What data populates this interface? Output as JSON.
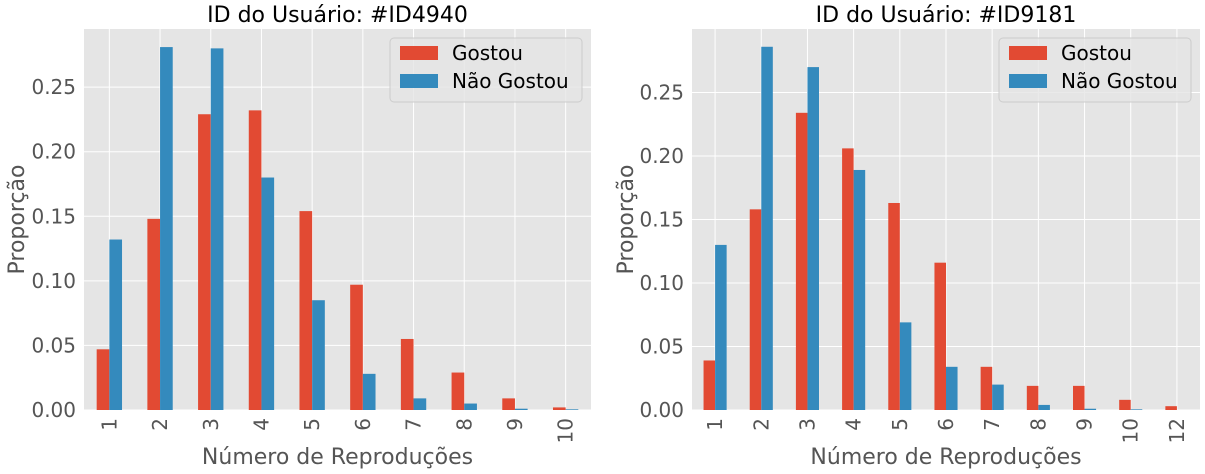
{
  "colors": {
    "gostou": "#E24A33",
    "nao_gostou": "#348ABD",
    "plot_bg": "#E5E5E5",
    "grid": "#FFFFFF",
    "text": "#555555",
    "title": "#000000"
  },
  "chart_data": [
    {
      "type": "bar",
      "title": "ID do Usuário: #ID4940",
      "xlabel": "Número de Reproduções",
      "ylabel": "Proporção",
      "categories": [
        "1",
        "2",
        "3",
        "4",
        "5",
        "6",
        "7",
        "8",
        "9",
        "10"
      ],
      "series": [
        {
          "name": "Gostou",
          "values": [
            0.047,
            0.148,
            0.229,
            0.232,
            0.154,
            0.097,
            0.055,
            0.029,
            0.009,
            0.002
          ]
        },
        {
          "name": "Não Gostou",
          "values": [
            0.132,
            0.281,
            0.28,
            0.18,
            0.085,
            0.028,
            0.009,
            0.005,
            0.001,
            0.0005
          ]
        }
      ],
      "ylim": [
        0,
        0.295
      ],
      "yticks": [
        0.0,
        0.05,
        0.1,
        0.15,
        0.2,
        0.25
      ],
      "ytick_labels": [
        "0.00",
        "0.05",
        "0.10",
        "0.15",
        "0.20",
        "0.25"
      ],
      "grid": true,
      "legend_position": "top-right"
    },
    {
      "type": "bar",
      "title": "ID do Usuário: #ID9181",
      "xlabel": "Número de Reproduções",
      "ylabel": "Proporção",
      "categories": [
        "1",
        "2",
        "3",
        "4",
        "5",
        "6",
        "7",
        "8",
        "9",
        "10",
        "12"
      ],
      "series": [
        {
          "name": "Gostou",
          "values": [
            0.039,
            0.158,
            0.234,
            0.206,
            0.163,
            0.116,
            0.034,
            0.019,
            0.019,
            0.008,
            0.003
          ]
        },
        {
          "name": "Não Gostou",
          "values": [
            0.13,
            0.286,
            0.27,
            0.189,
            0.069,
            0.034,
            0.02,
            0.004,
            0.001,
            0.0005,
            0
          ]
        }
      ],
      "ylim": [
        0,
        0.3
      ],
      "yticks": [
        0.0,
        0.05,
        0.1,
        0.15,
        0.2,
        0.25
      ],
      "ytick_labels": [
        "0.00",
        "0.05",
        "0.10",
        "0.15",
        "0.20",
        "0.25"
      ],
      "grid": true,
      "legend_position": "top-right"
    }
  ]
}
